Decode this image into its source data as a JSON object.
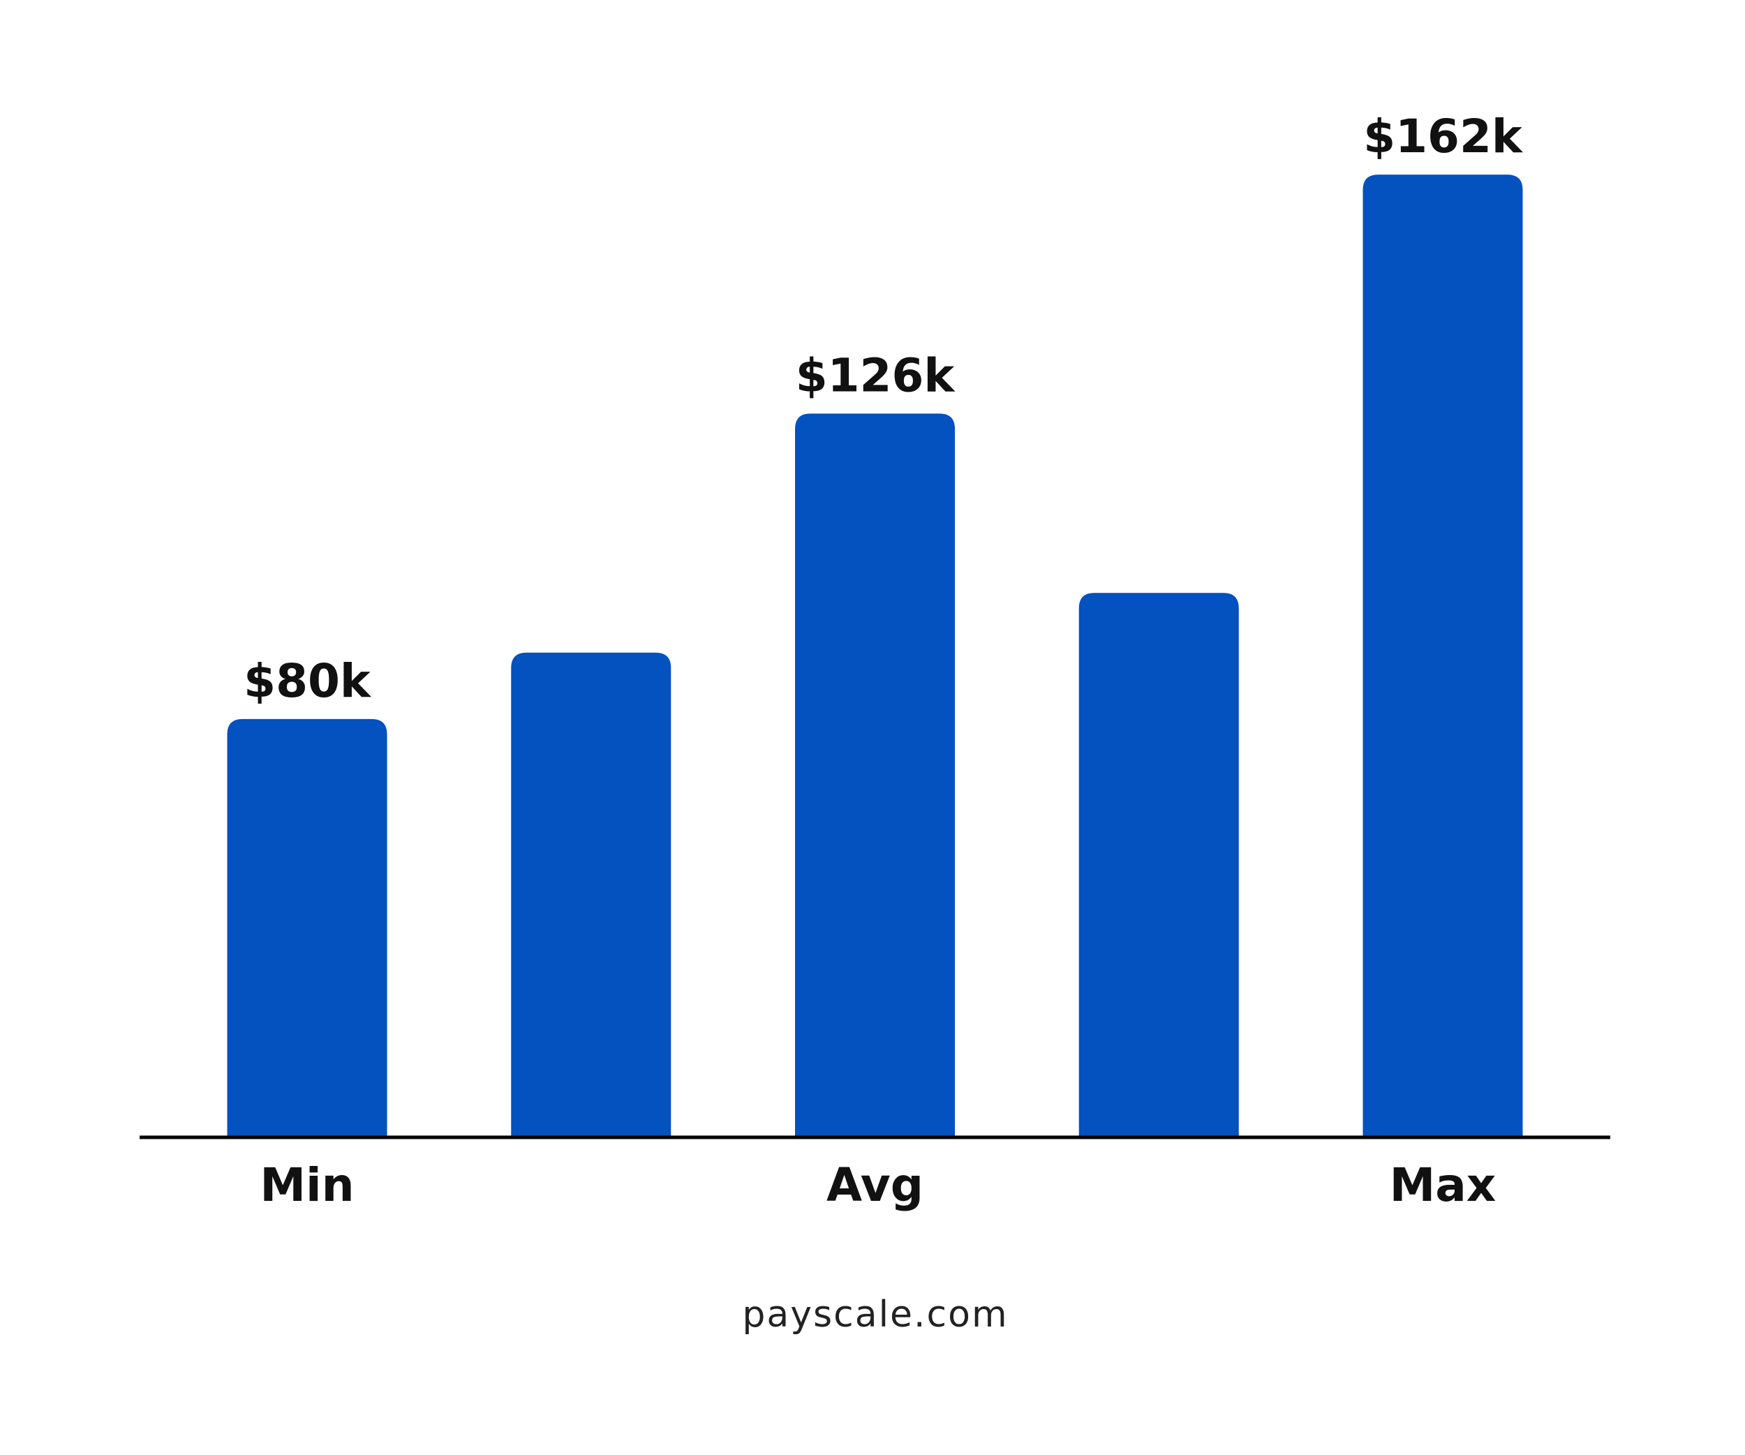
{
  "chart_data": {
    "type": "bar",
    "categories": [
      "Min",
      null,
      "Avg",
      null,
      "Max"
    ],
    "values": [
      80000,
      90000,
      126000,
      99000,
      162000
    ],
    "value_labels": [
      "$80k",
      null,
      "$126k",
      null,
      "$162k"
    ],
    "color": "#0451c0",
    "ylim": [
      17000,
      170000
    ],
    "source": "payscale.com"
  }
}
